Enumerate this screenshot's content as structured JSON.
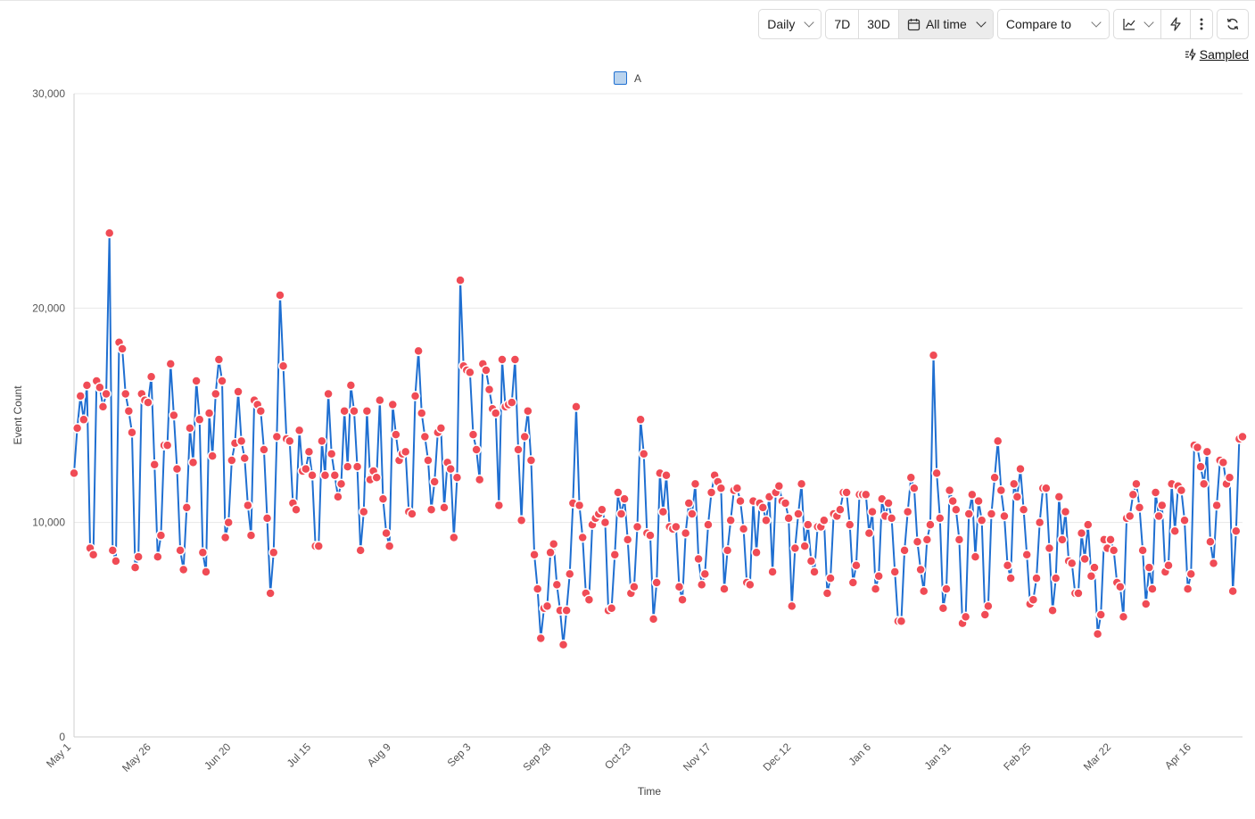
{
  "toolbar": {
    "interval": "Daily",
    "range_7d": "7D",
    "range_30d": "30D",
    "range_all": "All time",
    "compare": "Compare to"
  },
  "sampled_label": "Sampled",
  "icons": {
    "calendar": "calendar-icon",
    "chart_type": "line-chart-icon",
    "bolt": "lightning-icon",
    "more": "more-vertical-icon",
    "refresh": "refresh-icon",
    "sampled": "sampled-icon"
  },
  "colors": {
    "line": "#1f6fd1",
    "point": "#f04b55",
    "grid": "#e8e8e8"
  },
  "chart_data": {
    "type": "line",
    "xlabel": "Time",
    "ylabel": "Event Count",
    "ylim": [
      0,
      30000
    ],
    "yticks": [
      "0",
      "10,000",
      "20,000",
      "30,000"
    ],
    "xticks": [
      "May 1",
      "May 26",
      "Jun 20",
      "Jul 15",
      "Aug 9",
      "Sep 3",
      "Sep 28",
      "Oct 23",
      "Nov 17",
      "Dec 12",
      "Jan 6",
      "Jan 31",
      "Feb 25",
      "Mar 22",
      "Apr 16"
    ],
    "legend": [
      "A"
    ],
    "series": [
      {
        "name": "A",
        "values": [
          12300,
          14400,
          15900,
          14800,
          16400,
          8800,
          8500,
          16600,
          16300,
          15400,
          16000,
          23500,
          8700,
          8200,
          18400,
          18100,
          16000,
          15200,
          14200,
          7900,
          8400,
          16000,
          15700,
          15600,
          16800,
          12700,
          8400,
          9400,
          13600,
          13600,
          17400,
          15000,
          12500,
          8700,
          7800,
          10700,
          14400,
          12800,
          16600,
          14800,
          8600,
          7700,
          15100,
          13100,
          16000,
          17600,
          16600,
          9300,
          10000,
          12900,
          13700,
          16100,
          13800,
          13000,
          10800,
          9400,
          15700,
          15500,
          15200,
          13400,
          10200,
          6700,
          8600,
          14000,
          20600,
          17300,
          13900,
          13800,
          10900,
          10600,
          14300,
          12400,
          12500,
          13300,
          12200,
          8900,
          8900,
          13800,
          12200,
          16000,
          13200,
          12200,
          11200,
          11800,
          15200,
          12600,
          16400,
          15200,
          12600,
          8700,
          10500,
          15200,
          12000,
          12400,
          12100,
          15700,
          11100,
          9500,
          8900,
          15500,
          14100,
          12900,
          13200,
          13300,
          10500,
          10400,
          15900,
          18000,
          15100,
          14000,
          12900,
          10600,
          11900,
          14200,
          14400,
          10700,
          12800,
          12500,
          9300,
          12100,
          21300,
          17300,
          17100,
          17000,
          14100,
          13400,
          12000,
          17400,
          17100,
          16200,
          15300,
          15100,
          10800,
          17600,
          15400,
          15500,
          15600,
          17600,
          13400,
          10100,
          14000,
          15200,
          12900,
          8500,
          6900,
          4600,
          6000,
          6100,
          8600,
          9000,
          7100,
          5900,
          4300,
          5900,
          7600,
          10900,
          15400,
          10800,
          9300,
          6700,
          6400,
          9900,
          10200,
          10400,
          10600,
          10000,
          5900,
          6000,
          8500,
          11400,
          10400,
          11100,
          9200,
          6700,
          7000,
          9800,
          14800,
          13200,
          9500,
          9400,
          5500,
          7200,
          12300,
          10500,
          12200,
          9800,
          9700,
          9800,
          7000,
          6400,
          9500,
          10900,
          10400,
          11800,
          8300,
          7100,
          7600,
          9900,
          11400,
          12200,
          11900,
          11600,
          6900,
          8700,
          10100,
          11500,
          11600,
          11000,
          9700,
          7200,
          7100,
          11000,
          8600,
          10900,
          10700,
          10100,
          11200,
          7700,
          11400,
          11700,
          11000,
          10900,
          10200,
          6100,
          8800,
          10400,
          11800,
          8900,
          9900,
          8200,
          7700,
          9800,
          9800,
          10100,
          6700,
          7400,
          10400,
          10300,
          10600,
          11400,
          11400,
          9900,
          7200,
          8000,
          11300,
          11300,
          11300,
          9500,
          10500,
          6900,
          7500,
          11100,
          10300,
          10900,
          10200,
          7700,
          5400,
          5400,
          8700,
          10500,
          12100,
          11600,
          9100,
          7800,
          6800,
          9200,
          9900,
          17800,
          12300,
          10200,
          6000,
          6900,
          11500,
          11000,
          10600,
          9200,
          5300,
          5600,
          10400,
          11300,
          8400,
          11000,
          10100,
          5700,
          6100,
          10400,
          12100,
          13800,
          11500,
          10300,
          8000,
          7400,
          11800,
          11200,
          12500,
          10600,
          8500,
          6200,
          6400,
          7400,
          10000,
          11600,
          11600,
          8800,
          5900,
          7400,
          11200,
          9200,
          10500,
          8200,
          8100,
          6700,
          6700,
          9500,
          8300,
          9900,
          7500,
          7900,
          4800,
          5700,
          9200,
          8800,
          9200,
          8700,
          7200,
          7000,
          5600,
          10200,
          10300,
          11300,
          11800,
          10700,
          8700,
          6200,
          7900,
          6900,
          11400,
          10300,
          10800,
          7700,
          8000,
          11800,
          9600,
          11700,
          11500,
          10100,
          6900,
          7600,
          13600,
          13500,
          12600,
          11800,
          13300,
          9100,
          8100,
          10800,
          12900,
          12800,
          11800,
          12100,
          6800,
          9600,
          13900,
          14000
        ]
      }
    ]
  }
}
